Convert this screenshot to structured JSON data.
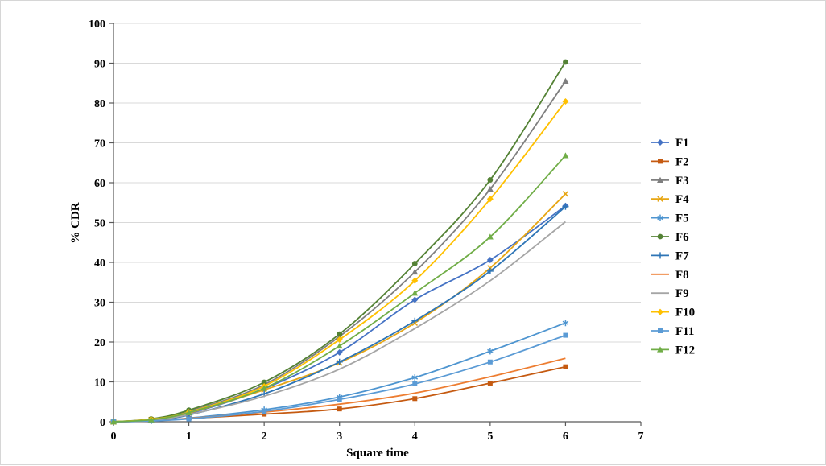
{
  "chart_data": {
    "type": "line",
    "title": "",
    "xlabel": "Square time",
    "ylabel": "% CDR",
    "xlim": [
      0,
      7
    ],
    "ylim": [
      0,
      100
    ],
    "x_ticks": [
      0,
      1,
      2,
      3,
      4,
      5,
      6,
      7
    ],
    "y_ticks": [
      0,
      10,
      20,
      30,
      40,
      50,
      60,
      70,
      80,
      90,
      100
    ],
    "grid": "horizontal",
    "legend_position": "right",
    "x": [
      0,
      0.5,
      1,
      2,
      3,
      4,
      5,
      6
    ],
    "series": [
      {
        "name": "F1",
        "color": "#4472C4",
        "marker": "diamond",
        "values": [
          0,
          0.4,
          2.0,
          8.3,
          17.4,
          30.6,
          40.6,
          54.2
        ]
      },
      {
        "name": "F2",
        "color": "#C55A11",
        "marker": "square",
        "values": [
          0,
          0.2,
          0.8,
          1.9,
          3.2,
          5.8,
          9.7,
          13.8
        ]
      },
      {
        "name": "F3",
        "color": "#7F7F7F",
        "marker": "triangle",
        "values": [
          0,
          0.6,
          2.6,
          9.3,
          21.4,
          37.6,
          58.4,
          85.5
        ]
      },
      {
        "name": "F4",
        "color": "#E7A614",
        "marker": "x",
        "values": [
          0,
          0.5,
          2.2,
          8.0,
          14.8,
          24.8,
          38.6,
          57.2
        ]
      },
      {
        "name": "F5",
        "color": "#4E95D0",
        "marker": "asterisk",
        "values": [
          0,
          0.2,
          0.9,
          3.0,
          6.2,
          11.1,
          17.7,
          24.8
        ]
      },
      {
        "name": "F6",
        "color": "#548235",
        "marker": "circle",
        "values": [
          0,
          0.7,
          2.9,
          9.9,
          22.0,
          39.7,
          60.7,
          90.3
        ]
      },
      {
        "name": "F7",
        "color": "#2E75B6",
        "marker": "plus",
        "values": [
          0,
          0.3,
          1.7,
          7.0,
          15.0,
          25.3,
          37.8,
          54.0
        ]
      },
      {
        "name": "F8",
        "color": "#ED7D31",
        "marker": "none",
        "values": [
          0,
          0.2,
          0.8,
          2.4,
          4.4,
          7.2,
          11.3,
          15.9
        ]
      },
      {
        "name": "F9",
        "color": "#A5A5A5",
        "marker": "none",
        "values": [
          0,
          0.4,
          1.8,
          6.4,
          13.2,
          23.4,
          35.4,
          50.2
        ]
      },
      {
        "name": "F10",
        "color": "#FFC000",
        "marker": "diamond",
        "values": [
          0,
          0.6,
          2.4,
          8.9,
          20.6,
          35.4,
          55.9,
          80.4
        ]
      },
      {
        "name": "F11",
        "color": "#5B9BD5",
        "marker": "square",
        "values": [
          0,
          0.2,
          0.7,
          2.6,
          5.6,
          9.5,
          15.0,
          21.7
        ]
      },
      {
        "name": "F12",
        "color": "#70AD47",
        "marker": "triangle",
        "values": [
          0,
          0.5,
          2.3,
          8.4,
          19.0,
          32.3,
          46.4,
          66.8
        ]
      }
    ],
    "colors": {
      "gridline": "#d9d9d9",
      "axis": "#595959",
      "text": "#000000"
    }
  }
}
